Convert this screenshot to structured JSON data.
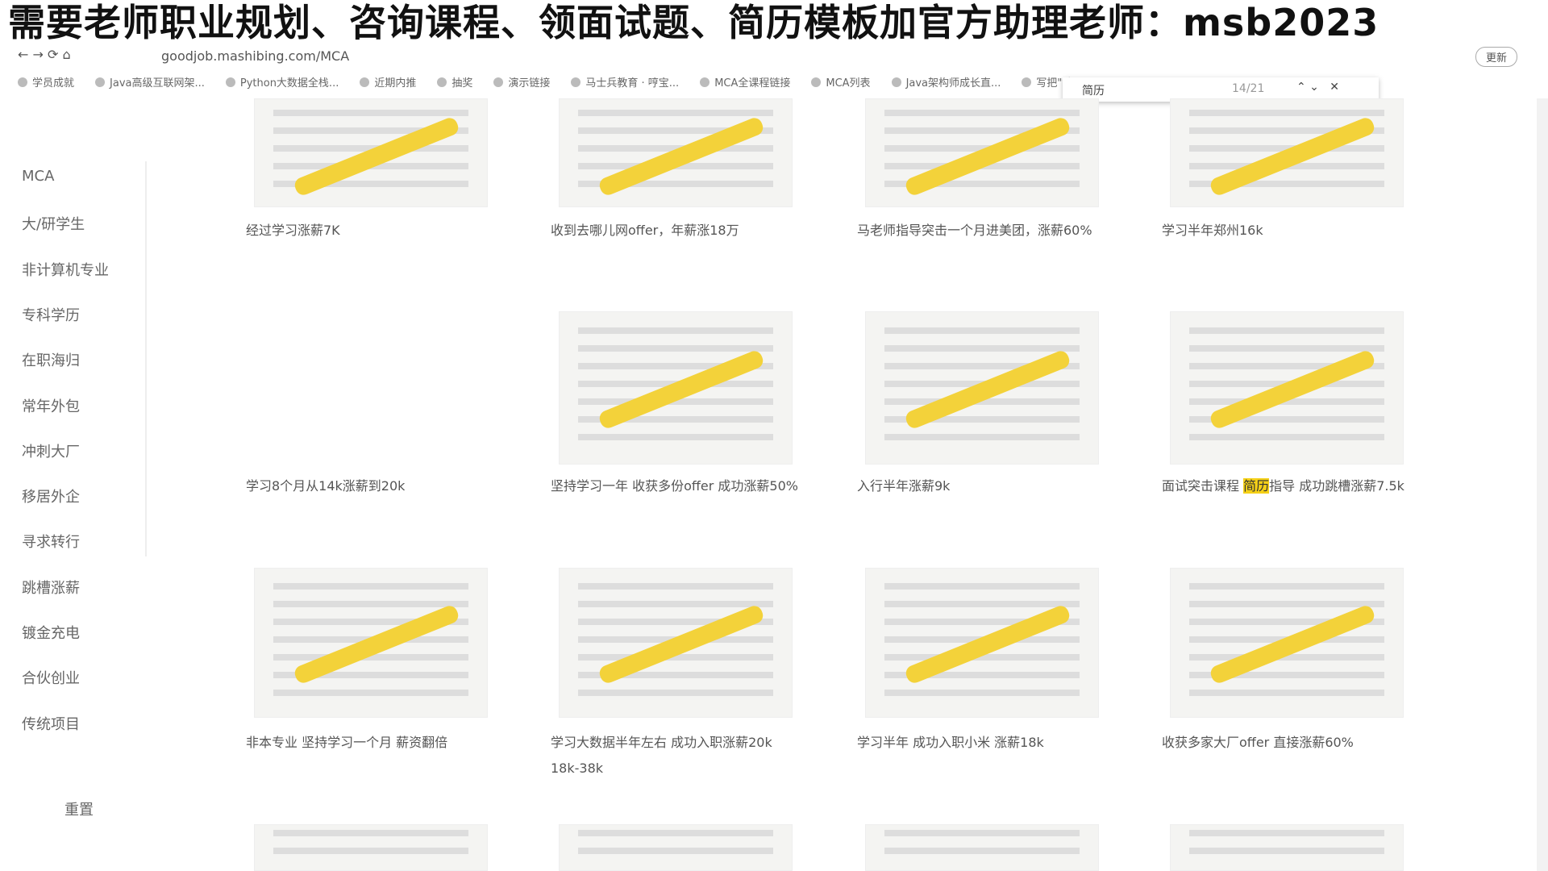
{
  "banner": "需要老师职业规划、咨询课程、领面试题、简历模板加官方助理老师：msb2023",
  "browser": {
    "url": "goodjob.mashibing.com/MCA",
    "update": "更新"
  },
  "bookmarks": [
    "学员成就",
    "Java高级互联网架...",
    "Python大数据全栈...",
    "近期内推",
    "抽奖",
    "演示链接",
    "马士兵教育 · 哼宝...",
    "MCA全课程链接",
    "MCA列表",
    "Java架构师成长直...",
    "写把\"锁\"..."
  ],
  "find": {
    "query": "简历",
    "count": "14/21"
  },
  "sidebar": {
    "items": [
      "MCA",
      "大/研学生",
      "非计算机专业",
      "专科学历",
      "在职海归",
      "常年外包",
      "冲刺大厂",
      "移居外企",
      "寻求转行",
      "跳槽涨薪",
      "镀金充电",
      "合伙创业",
      "传统项目"
    ],
    "reset": "重置"
  },
  "cards": [
    {
      "text": "经过学习涨薪7K"
    },
    {
      "text": "收到去哪儿网offer，年薪涨18万"
    },
    {
      "text": "马老师指导突击一个月进美团，涨薪60%"
    },
    {
      "text": "学习半年郑州16k"
    },
    {
      "text": "学习8个月从14k涨薪到20k"
    },
    {
      "text": "坚持学习一年 收获多份offer 成功涨薪50%"
    },
    {
      "text": "入行半年涨薪9k"
    },
    {
      "before": "面试突击课程 ",
      "highlight": "简历",
      "after": "指导 成功跳槽涨薪7.5k"
    },
    {
      "text": "非本专业 坚持学习一个月 薪资翻倍"
    },
    {
      "text": "学习大数据半年左右 成功入职涨薪20k 18k-38k"
    },
    {
      "text": "学习半年 成功入职小米 涨薪18k"
    },
    {
      "text": "收获多家大厂offer 直接涨薪60%"
    }
  ]
}
